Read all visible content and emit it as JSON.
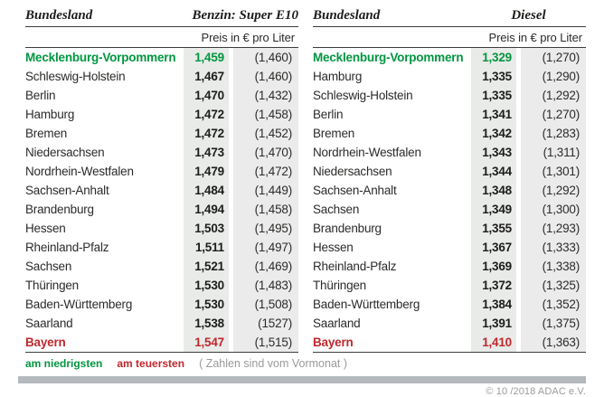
{
  "colors": {
    "green": "#009640",
    "red": "#c1272d",
    "col_price_bg": "#e8ebe8",
    "col_prev_bg": "#ebebeb",
    "bar": "#b3b9bc"
  },
  "tables": [
    {
      "col1": "Bundesland",
      "col2": "Benzin: Super E10",
      "subtitle": "Preis in € pro Liter",
      "rows": [
        {
          "name": "Mecklenburg-Vorpommern",
          "price": "1,459",
          "prev": "(1,460)",
          "highlight": "green"
        },
        {
          "name": "Schleswig-Holstein",
          "price": "1,467",
          "prev": "(1,460)"
        },
        {
          "name": "Berlin",
          "price": "1,470",
          "prev": "(1,432)"
        },
        {
          "name": "Hamburg",
          "price": "1,472",
          "prev": "(1,458)"
        },
        {
          "name": "Bremen",
          "price": "1,472",
          "prev": "(1,452)"
        },
        {
          "name": "Niedersachsen",
          "price": "1,473",
          "prev": "(1,470)"
        },
        {
          "name": "Nordrhein-Westfalen",
          "price": "1,479",
          "prev": "(1,472)"
        },
        {
          "name": "Sachsen-Anhalt",
          "price": "1,484",
          "prev": "(1,449)"
        },
        {
          "name": "Brandenburg",
          "price": "1,494",
          "prev": "(1,458)"
        },
        {
          "name": "Hessen",
          "price": "1,503",
          "prev": "(1,495)"
        },
        {
          "name": "Rheinland-Pfalz",
          "price": "1,511",
          "prev": "(1,497)"
        },
        {
          "name": "Sachsen",
          "price": "1,521",
          "prev": "(1,469)"
        },
        {
          "name": "Thüringen",
          "price": "1,530",
          "prev": "(1,483)"
        },
        {
          "name": "Baden-Württemberg",
          "price": "1,530",
          "prev": "(1,508)"
        },
        {
          "name": "Saarland",
          "price": "1,538",
          "prev": "(1527)"
        },
        {
          "name": "Bayern",
          "price": "1,547",
          "prev": "(1,515)",
          "highlight": "red"
        }
      ]
    },
    {
      "col1": "Bundesland",
      "col2": "Diesel",
      "subtitle": "Preis in € pro Liter",
      "rows": [
        {
          "name": "Mecklenburg-Vorpommern",
          "price": "1,329",
          "prev": "(1,270)",
          "highlight": "green"
        },
        {
          "name": "Hamburg",
          "price": "1,335",
          "prev": "(1,290)"
        },
        {
          "name": "Schleswig-Holstein",
          "price": "1,335",
          "prev": "(1,292)"
        },
        {
          "name": "Berlin",
          "price": "1,341",
          "prev": "(1,270)"
        },
        {
          "name": "Bremen",
          "price": "1,342",
          "prev": "(1,283)"
        },
        {
          "name": "Nordrhein-Westfalen",
          "price": "1,343",
          "prev": "(1,311)"
        },
        {
          "name": "Niedersachsen",
          "price": "1,344",
          "prev": "(1,301)"
        },
        {
          "name": "Sachsen-Anhalt",
          "price": "1,348",
          "prev": "(1,292)"
        },
        {
          "name": "Sachsen",
          "price": "1,349",
          "prev": "(1,300)"
        },
        {
          "name": "Brandenburg",
          "price": "1,355",
          "prev": "(1,293)"
        },
        {
          "name": "Hessen",
          "price": "1,367",
          "prev": "(1,333)"
        },
        {
          "name": "Rheinland-Pfalz",
          "price": "1,369",
          "prev": "(1,338)"
        },
        {
          "name": "Thüringen",
          "price": "1,372",
          "prev": "(1,325)"
        },
        {
          "name": "Baden-Württemberg",
          "price": "1,384",
          "prev": "(1,352)"
        },
        {
          "name": "Saarland",
          "price": "1,391",
          "prev": "(1,375)"
        },
        {
          "name": "Bayern",
          "price": "1,410",
          "prev": "(1,363)",
          "highlight": "red"
        }
      ]
    }
  ],
  "legend": {
    "lowest": "am niedrigsten",
    "highest": "am teuersten",
    "note": "( Zahlen sind vom Vormonat )"
  },
  "copyright": "© 10 /2018 ADAC e.V.",
  "chart_data": [
    {
      "type": "table",
      "title": "Benzin: Super E10",
      "columns": [
        "Bundesland",
        "Preis in € pro Liter",
        "Vormonat"
      ],
      "rows": [
        [
          "Mecklenburg-Vorpommern",
          1.459,
          1.46
        ],
        [
          "Schleswig-Holstein",
          1.467,
          1.46
        ],
        [
          "Berlin",
          1.47,
          1.432
        ],
        [
          "Hamburg",
          1.472,
          1.458
        ],
        [
          "Bremen",
          1.472,
          1.452
        ],
        [
          "Niedersachsen",
          1.473,
          1.47
        ],
        [
          "Nordrhein-Westfalen",
          1.479,
          1.472
        ],
        [
          "Sachsen-Anhalt",
          1.484,
          1.449
        ],
        [
          "Brandenburg",
          1.494,
          1.458
        ],
        [
          "Hessen",
          1.503,
          1.495
        ],
        [
          "Rheinland-Pfalz",
          1.511,
          1.497
        ],
        [
          "Sachsen",
          1.521,
          1.469
        ],
        [
          "Thüringen",
          1.53,
          1.483
        ],
        [
          "Baden-Württemberg",
          1.53,
          1.508
        ],
        [
          "Saarland",
          1.538,
          1.527
        ],
        [
          "Bayern",
          1.547,
          1.515
        ]
      ],
      "annotations": {
        "lowest": "Mecklenburg-Vorpommern",
        "highest": "Bayern"
      }
    },
    {
      "type": "table",
      "title": "Diesel",
      "columns": [
        "Bundesland",
        "Preis in € pro Liter",
        "Vormonat"
      ],
      "rows": [
        [
          "Mecklenburg-Vorpommern",
          1.329,
          1.27
        ],
        [
          "Hamburg",
          1.335,
          1.29
        ],
        [
          "Schleswig-Holstein",
          1.335,
          1.292
        ],
        [
          "Berlin",
          1.341,
          1.27
        ],
        [
          "Bremen",
          1.342,
          1.283
        ],
        [
          "Nordrhein-Westfalen",
          1.343,
          1.311
        ],
        [
          "Niedersachsen",
          1.344,
          1.301
        ],
        [
          "Sachsen-Anhalt",
          1.348,
          1.292
        ],
        [
          "Sachsen",
          1.349,
          1.3
        ],
        [
          "Brandenburg",
          1.355,
          1.293
        ],
        [
          "Hessen",
          1.367,
          1.333
        ],
        [
          "Rheinland-Pfalz",
          1.369,
          1.338
        ],
        [
          "Thüringen",
          1.372,
          1.325
        ],
        [
          "Baden-Württemberg",
          1.384,
          1.352
        ],
        [
          "Saarland",
          1.391,
          1.375
        ],
        [
          "Bayern",
          1.41,
          1.363
        ]
      ],
      "annotations": {
        "lowest": "Mecklenburg-Vorpommern",
        "highest": "Bayern"
      }
    }
  ]
}
